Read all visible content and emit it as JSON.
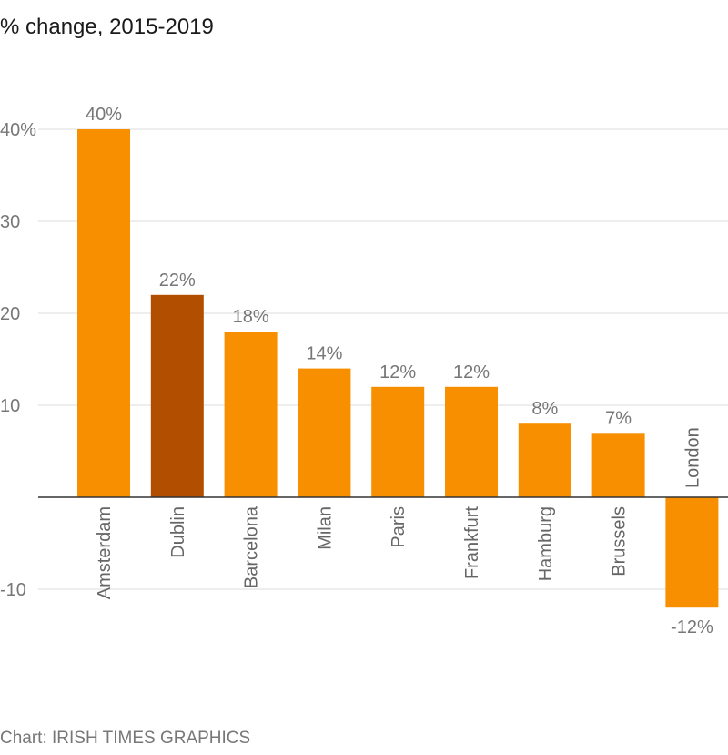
{
  "title": "% change, 2015-2019",
  "credit": "Chart: IRISH TIMES GRAPHICS",
  "chart_data": {
    "type": "bar",
    "title": "% change, 2015-2019",
    "categories": [
      "Amsterdam",
      "Dublin",
      "Barcelona",
      "Milan",
      "Paris",
      "Frankfurt",
      "Hamburg",
      "Brussels",
      "London"
    ],
    "values": [
      40,
      22,
      18,
      14,
      12,
      12,
      8,
      7,
      -12
    ],
    "data_labels": [
      "40%",
      "22%",
      "18%",
      "14%",
      "12%",
      "12%",
      "8%",
      "7%",
      "-12%"
    ],
    "highlight": "Dublin",
    "ylim": [
      -12,
      40
    ],
    "yticks": [
      40,
      30,
      20,
      10,
      -10
    ],
    "ytick_labels": [
      "40%",
      "30",
      "20",
      "10",
      "-10"
    ],
    "grid": true,
    "colors": {
      "bar": "#f78f00",
      "highlight": "#b24e00"
    }
  }
}
